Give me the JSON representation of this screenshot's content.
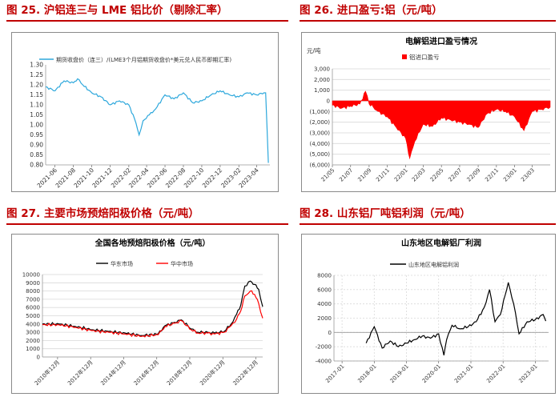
{
  "headers": {
    "fig25": "图 25.  沪铝连三与 LME 铝比价（剔除汇率）",
    "fig26": "图 26.  进口盈亏:铝（元/吨）",
    "fig27": "图 27. 主要市场预焙阳极价格（元/吨）",
    "fig28": "图 28. 山东铝厂吨铝利润（元/吨）"
  },
  "colors": {
    "accent": "#c00000",
    "series_blue": "#2ea8dc",
    "series_red": "#ff0000",
    "series_black": "#000000"
  },
  "chart_data": [
    {
      "id": "fig25",
      "type": "line",
      "title": "",
      "legend": "期货收盘价（连三）/(LME3个月铝期货收盘价*美元兑人民币即期汇率)",
      "legend_position": "top",
      "ylim": [
        0.8,
        1.3
      ],
      "yticks": [
        "1.30",
        "1.25",
        "1.20",
        "1.15",
        "1.10",
        "1.05",
        "1.00",
        "0.95",
        "0.90",
        "0.85",
        "0.80"
      ],
      "xticks": [
        "2021-06",
        "2021-08",
        "2021-10",
        "2021-12",
        "2022-02",
        "2022-04",
        "2022-06",
        "2022-08",
        "2022-10",
        "2022-12",
        "2023-02",
        "2023-04"
      ],
      "x": [
        "2021-05-01",
        "2021-06-01",
        "2021-07-01",
        "2021-08-01",
        "2021-08-15",
        "2021-09-01",
        "2021-10-01",
        "2021-11-01",
        "2021-12-01",
        "2022-01-01",
        "2022-02-01",
        "2022-02-20",
        "2022-03-07",
        "2022-03-20",
        "2022-04-10",
        "2022-05-01",
        "2022-06-01",
        "2022-07-01",
        "2022-08-01",
        "2022-09-01",
        "2022-10-01",
        "2022-11-01",
        "2022-12-01",
        "2023-01-01",
        "2023-02-01",
        "2023-03-01",
        "2023-04-01",
        "2023-04-25",
        "2023-05-01",
        "2023-05-10"
      ],
      "series": [
        {
          "values": [
            1.19,
            1.17,
            1.22,
            1.21,
            1.23,
            1.2,
            1.16,
            1.14,
            1.1,
            1.12,
            1.1,
            1.03,
            0.95,
            1.02,
            1.05,
            1.08,
            1.15,
            1.13,
            1.16,
            1.11,
            1.12,
            1.15,
            1.17,
            1.15,
            1.14,
            1.16,
            1.15,
            1.16,
            1.16,
            0.81
          ]
        }
      ]
    },
    {
      "id": "fig26",
      "type": "area",
      "title": "电解铝进口盈亏情况",
      "legend": [
        "铝进口盈亏"
      ],
      "legend_position": "top-left",
      "ylabel": "元/吨",
      "ylim": [
        -6000,
        3000
      ],
      "yticks": [
        "3,000",
        "2,000",
        "1,000",
        "0",
        "(1,000)",
        "(2,000)",
        "(3,000)",
        "(4,000)",
        "(5,000)",
        "(6,000)"
      ],
      "xticks": [
        "21/05",
        "21/07",
        "21/09",
        "21/11",
        "22/01",
        "22/03",
        "22/05",
        "22/07",
        "22/09",
        "22/11",
        "23/01",
        "23/03"
      ],
      "x": [
        "2021-05-01",
        "2021-06-01",
        "2021-07-01",
        "2021-08-01",
        "2021-08-20",
        "2021-09-01",
        "2021-09-15",
        "2021-10-01",
        "2021-11-01",
        "2021-12-01",
        "2022-01-01",
        "2022-01-15",
        "2022-02-01",
        "2022-03-01",
        "2022-04-01",
        "2022-05-01",
        "2022-06-01",
        "2022-07-01",
        "2022-08-01",
        "2022-09-01",
        "2022-10-01",
        "2022-11-01",
        "2022-12-01",
        "2023-01-01",
        "2023-02-01",
        "2023-03-01",
        "2023-04-01",
        "2023-04-30"
      ],
      "series": [
        {
          "name": "铝进口盈亏",
          "values": [
            -400,
            -700,
            -500,
            -300,
            900,
            -300,
            -600,
            -1000,
            -1500,
            -2500,
            -3500,
            -5400,
            -3800,
            -2200,
            -2400,
            -1600,
            -1800,
            -2000,
            -2200,
            -2500,
            -1200,
            -800,
            -1000,
            -1500,
            -2800,
            -1000,
            -800,
            -600
          ]
        }
      ]
    },
    {
      "id": "fig27",
      "type": "line",
      "title": "全国各地预焙阳极价格（元/吨）",
      "legend": [
        "华东市场",
        "华中市场"
      ],
      "legend_position": "top",
      "ylim": [
        0,
        10000
      ],
      "yticks": [
        "10000",
        "9000",
        "8000",
        "7000",
        "6000",
        "5000",
        "4000",
        "3000",
        "2000",
        "1000",
        "0"
      ],
      "xticks": [
        "2010年12月",
        "2012年12月",
        "2014年12月",
        "2016年12月",
        "2018年12月",
        "2020年12月",
        "2022年12月"
      ],
      "x": [
        "2010-01-01",
        "2011-01-01",
        "2012-01-01",
        "2013-01-01",
        "2014-01-01",
        "2015-01-01",
        "2016-01-01",
        "2017-01-01",
        "2017-06-01",
        "2018-01-01",
        "2018-06-01",
        "2019-01-01",
        "2019-06-01",
        "2020-01-01",
        "2020-06-01",
        "2021-01-01",
        "2021-06-01",
        "2021-10-01",
        "2022-01-01",
        "2022-04-01",
        "2022-08-01",
        "2022-11-01",
        "2023-02-01",
        "2023-04-30"
      ],
      "series": [
        {
          "name": "华东市场",
          "values": [
            4000,
            4000,
            3700,
            3300,
            3100,
            2900,
            2600,
            2800,
            3800,
            4200,
            4500,
            3400,
            3000,
            3000,
            2900,
            3100,
            4000,
            5200,
            6300,
            8600,
            9200,
            8800,
            8200,
            6100
          ]
        },
        {
          "name": "华中市场",
          "values": [
            3900,
            3900,
            3600,
            3200,
            3000,
            2800,
            2500,
            2700,
            3700,
            4100,
            4400,
            3300,
            2900,
            2900,
            2800,
            3000,
            3800,
            4600,
            5600,
            7400,
            8000,
            7600,
            6500,
            4700
          ]
        }
      ]
    },
    {
      "id": "fig28",
      "type": "line",
      "title": "山东地区电解铝厂利润",
      "legend": [
        "山东地区电解铝利润"
      ],
      "legend_position": "top",
      "ylim": [
        -4000,
        8000
      ],
      "yticks": [
        "8000",
        "6000",
        "4000",
        "2000",
        "0",
        "-2000",
        "-4000"
      ],
      "xticks": [
        "2017-01",
        "2018-01",
        "2019-01",
        "2020-01",
        "2021-01",
        "2022-01",
        "2023-01"
      ],
      "x": [
        "2017-10-01",
        "2018-01-01",
        "2018-04-01",
        "2018-07-01",
        "2018-10-01",
        "2019-01-01",
        "2019-04-01",
        "2019-07-01",
        "2019-10-01",
        "2020-01-01",
        "2020-03-01",
        "2020-04-01",
        "2020-06-01",
        "2020-09-01",
        "2020-12-01",
        "2021-03-01",
        "2021-06-01",
        "2021-08-01",
        "2021-10-01",
        "2021-12-01",
        "2022-03-01",
        "2022-05-01",
        "2022-07-01",
        "2022-10-01",
        "2023-01-01",
        "2023-04-01",
        "2023-04-30"
      ],
      "series": [
        {
          "name": "山东地区电解铝利润",
          "values": [
            -1500,
            800,
            -2200,
            -1200,
            -2000,
            -1500,
            -1000,
            -500,
            -800,
            -200,
            -3200,
            -1000,
            1000,
            500,
            800,
            1500,
            3500,
            6000,
            1500,
            2500,
            7000,
            4000,
            -200,
            1500,
            1800,
            2500,
            1600
          ]
        }
      ]
    }
  ]
}
